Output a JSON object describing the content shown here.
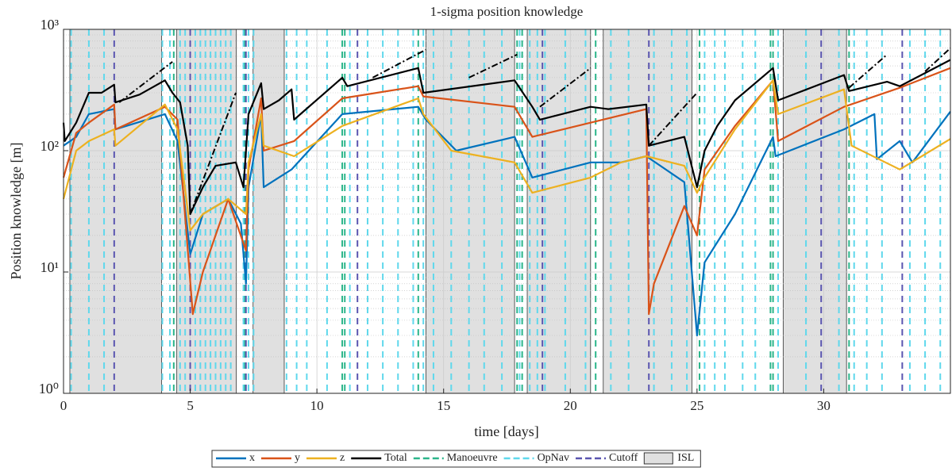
{
  "chart_data": {
    "type": "line",
    "title": "1-sigma position knowledge",
    "xlabel": "time [days]",
    "ylabel": "Position knowledge [m]",
    "log_y": true,
    "grid": true,
    "xlim": [
      0,
      35
    ],
    "xticks": [
      0,
      5,
      10,
      15,
      20,
      25,
      30
    ],
    "ylim": [
      1,
      1000
    ],
    "yticks": [
      {
        "value": 1,
        "label": "10⁰"
      },
      {
        "value": 10,
        "label": "10¹"
      },
      {
        "value": 100,
        "label": "10²"
      },
      {
        "value": 1000,
        "label": "10³"
      }
    ],
    "isl": {
      "name": "ISL",
      "color": "#e0e0e0",
      "intervals": [
        [
          0.25,
          3.87
        ],
        [
          4.47,
          6.82
        ],
        [
          7.48,
          8.71
        ],
        [
          14.3,
          17.8
        ],
        [
          18.3,
          20.8
        ],
        [
          21.3,
          24.8
        ],
        [
          28.4,
          30.9
        ]
      ]
    },
    "events": [
      {
        "name": "Manoeuvre",
        "color": "#2bb58a",
        "times": [
          4.2,
          4.35,
          7.15,
          11.0,
          11.1,
          14.0,
          17.9,
          18.1,
          21.0,
          25.1,
          27.9,
          28.0,
          31.0
        ]
      },
      {
        "name": "OpNav",
        "color": "#5fd8ec",
        "times": [
          0.3,
          1.0,
          1.6,
          3.9,
          4.2,
          4.6,
          4.8,
          5.2,
          5.4,
          5.6,
          5.8,
          6.0,
          6.2,
          6.4,
          6.6,
          7.1,
          7.3,
          7.5,
          8.8,
          9.2,
          9.6,
          10.4,
          11.3,
          12.0,
          12.6,
          13.2,
          13.8,
          14.2,
          14.6,
          15.3,
          16.0,
          16.6,
          17.3,
          18.0,
          18.4,
          18.7,
          19.0,
          19.8,
          20.6,
          21.6,
          22.3,
          23.3,
          24.0,
          24.6,
          25.3,
          25.7,
          26.1,
          26.8,
          27.3,
          28.2,
          29.3,
          30.6,
          31.2,
          31.7,
          32.3,
          33.4,
          34.0,
          34.6
        ]
      },
      {
        "name": "Cutoff",
        "color": "#5a55b0",
        "times": [
          2.0,
          5.0,
          7.2,
          11.6,
          18.9,
          23.1,
          29.9,
          33.1
        ]
      }
    ],
    "series": [
      {
        "name": "x",
        "color": "#0072bd",
        "x": [
          0,
          0.5,
          1,
          2,
          2.05,
          4,
          4.5,
          5.0,
          5.5,
          6.5,
          7.0,
          7.2,
          7.3,
          7.8,
          7.9,
          9,
          11,
          14,
          14.3,
          15.5,
          17.8,
          18.5,
          20.8,
          22,
          23.0,
          24.5,
          25.0,
          25.3,
          26.5,
          28,
          28.1,
          30.8,
          32,
          32.1,
          33,
          33.5,
          35
        ],
        "values": [
          110,
          130,
          200,
          220,
          150,
          200,
          120,
          14,
          30,
          40,
          25,
          8,
          50,
          200,
          50,
          70,
          200,
          230,
          180,
          100,
          130,
          60,
          80,
          80,
          90,
          55,
          3,
          12,
          30,
          130,
          90,
          150,
          200,
          85,
          120,
          80,
          210
        ]
      },
      {
        "name": "y",
        "color": "#d95319",
        "x": [
          0,
          0.5,
          1,
          2,
          2.05,
          4,
          4.5,
          5.1,
          5.5,
          6.5,
          7.2,
          7.3,
          7.8,
          7.9,
          9.1,
          11,
          14,
          14.2,
          17.8,
          18.5,
          20.8,
          23.0,
          23.1,
          23.3,
          24.5,
          25.0,
          25.3,
          26.5,
          28,
          28.2,
          30.8,
          33,
          35
        ],
        "values": [
          60,
          140,
          170,
          240,
          150,
          230,
          180,
          4.5,
          10,
          40,
          15,
          70,
          270,
          100,
          120,
          270,
          340,
          280,
          230,
          130,
          170,
          220,
          4.5,
          8,
          35,
          20,
          70,
          160,
          380,
          120,
          230,
          330,
          480
        ]
      },
      {
        "name": "z",
        "color": "#edb120",
        "x": [
          0,
          0.5,
          1,
          2,
          2.05,
          4,
          4.5,
          5.0,
          5.5,
          6.5,
          7.2,
          7.3,
          7.8,
          7.9,
          9.1,
          11,
          14,
          14.2,
          15.3,
          17.8,
          18.5,
          20.8,
          22,
          23.0,
          24.5,
          25.0,
          25.3,
          26.5,
          28,
          28.2,
          30.8,
          31.1,
          33,
          35
        ],
        "values": [
          40,
          100,
          120,
          150,
          110,
          240,
          150,
          22,
          30,
          40,
          30,
          80,
          200,
          110,
          90,
          160,
          270,
          200,
          100,
          80,
          45,
          60,
          80,
          90,
          75,
          45,
          60,
          150,
          380,
          200,
          320,
          110,
          70,
          125
        ]
      },
      {
        "name": "Total",
        "color": "#000000",
        "x": [
          0,
          0.05,
          0.5,
          1,
          1.5,
          2,
          2.05,
          3,
          4,
          4.3,
          4.6,
          4.9,
          5.0,
          5.5,
          6,
          6.8,
          7.1,
          7.3,
          7.8,
          7.9,
          8.5,
          9.0,
          9.1,
          11,
          11.2,
          14,
          14.2,
          17.8,
          18.5,
          18.8,
          20.8,
          21.5,
          23,
          23.1,
          24.5,
          25.0,
          25.3,
          25.8,
          26.5,
          28,
          28.2,
          30.8,
          31,
          32.5,
          33,
          35
        ],
        "values": [
          170,
          120,
          170,
          300,
          300,
          350,
          250,
          290,
          380,
          300,
          250,
          110,
          30,
          50,
          75,
          80,
          50,
          200,
          360,
          220,
          260,
          320,
          180,
          400,
          340,
          480,
          300,
          380,
          230,
          180,
          230,
          220,
          240,
          110,
          130,
          50,
          100,
          160,
          260,
          480,
          260,
          420,
          310,
          370,
          340,
          560
        ]
      }
    ],
    "dashdot_lines": [
      {
        "x": [
          2.2,
          4.3
        ],
        "values": [
          250,
          540
        ]
      },
      {
        "x": [
          5.0,
          6.8
        ],
        "values": [
          30,
          300
        ]
      },
      {
        "x": [
          12.2,
          14.3
        ],
        "values": [
          400,
          680
        ]
      },
      {
        "x": [
          16,
          17.9
        ],
        "values": [
          400,
          620
        ]
      },
      {
        "x": [
          18.8,
          20.8
        ],
        "values": [
          230,
          480
        ]
      },
      {
        "x": [
          23.1,
          25
        ],
        "values": [
          110,
          300
        ]
      },
      {
        "x": [
          31,
          32.5
        ],
        "values": [
          330,
          620
        ]
      },
      {
        "x": [
          34,
          35
        ],
        "values": [
          450,
          700
        ]
      }
    ]
  }
}
